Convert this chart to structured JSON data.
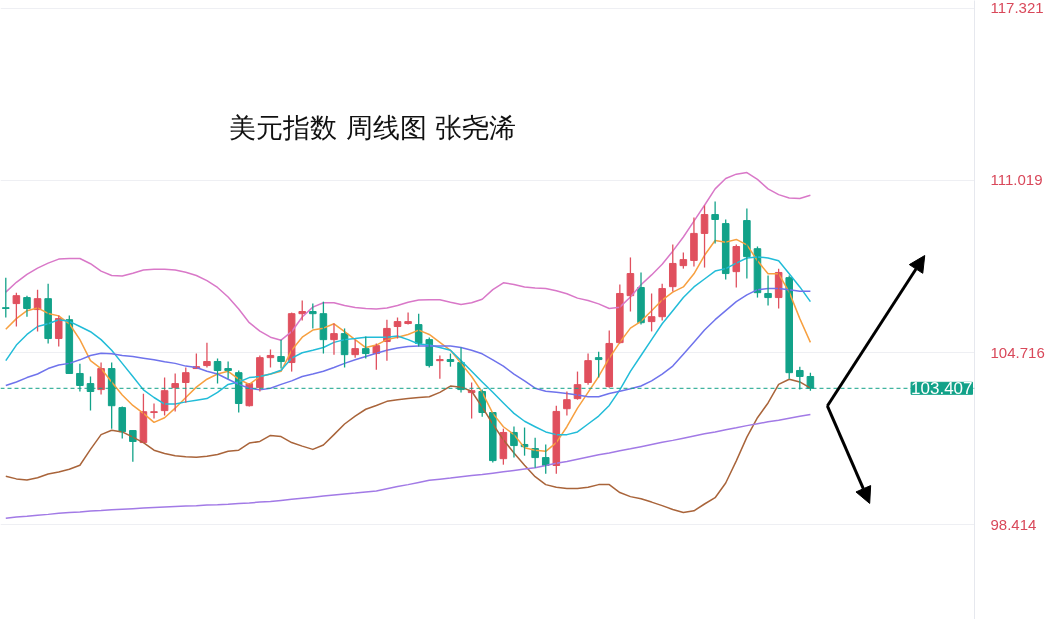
{
  "chart_data": {
    "type": "candlestick",
    "title": "美元指数 周线图 张尧浠",
    "categories": [
      null,
      null,
      null,
      null,
      null,
      null,
      null,
      null,
      null,
      null,
      null,
      null,
      null,
      null,
      null,
      null,
      null,
      null,
      null,
      null,
      null,
      null,
      null,
      null,
      null,
      null,
      null,
      null,
      null,
      null,
      null,
      null,
      null,
      null,
      null,
      null,
      null,
      null,
      null,
      null,
      null,
      null,
      null,
      null,
      null,
      null,
      null,
      null,
      null,
      null,
      null,
      null,
      null,
      null,
      null,
      null,
      null,
      null,
      null,
      null,
      null,
      null,
      null,
      null,
      null,
      null,
      null,
      null,
      null,
      null,
      null,
      null,
      null,
      null,
      null,
      null,
      null
    ],
    "ohlc": [
      [
        106.36,
        107.46,
        106.0,
        106.33
      ],
      [
        106.51,
        106.91,
        105.67,
        106.8
      ],
      [
        106.73,
        106.8,
        106.03,
        106.33
      ],
      [
        106.29,
        107.02,
        105.49,
        106.69
      ],
      [
        106.69,
        107.24,
        105.05,
        105.23
      ],
      [
        105.23,
        106.07,
        104.94,
        105.96
      ],
      [
        105.92,
        106.07,
        103.95,
        103.95
      ],
      [
        103.95,
        104.31,
        103.29,
        103.51
      ],
      [
        103.58,
        103.84,
        102.59,
        103.29
      ],
      [
        103.36,
        104.35,
        103.18,
        104.13
      ],
      [
        104.13,
        104.35,
        101.93,
        102.77
      ],
      [
        102.7,
        102.74,
        101.57,
        101.82
      ],
      [
        101.86,
        101.86,
        100.72,
        101.46
      ],
      [
        101.42,
        103.21,
        101.42,
        102.55
      ],
      [
        102.52,
        102.85,
        102.3,
        102.55
      ],
      [
        102.59,
        103.8,
        102.41,
        103.32
      ],
      [
        103.43,
        103.95,
        102.56,
        103.58
      ],
      [
        103.62,
        104.17,
        102.88,
        103.98
      ],
      [
        104.13,
        104.68,
        104.13,
        104.2
      ],
      [
        104.24,
        105.08,
        104.17,
        104.39
      ],
      [
        104.39,
        104.5,
        103.58,
        104.06
      ],
      [
        104.13,
        104.39,
        103.76,
        104.06
      ],
      [
        103.98,
        104.06,
        102.52,
        102.85
      ],
      [
        102.77,
        103.58,
        102.74,
        103.58
      ],
      [
        103.43,
        104.61,
        103.29,
        104.53
      ],
      [
        104.53,
        104.83,
        104.17,
        104.61
      ],
      [
        104.57,
        105.19,
        104.13,
        104.39
      ],
      [
        104.35,
        106.18,
        104.02,
        106.14
      ],
      [
        106.14,
        106.62,
        105.89,
        106.22
      ],
      [
        106.22,
        106.51,
        105.6,
        106.14
      ],
      [
        106.14,
        106.58,
        104.68,
        105.19
      ],
      [
        105.19,
        105.78,
        104.64,
        105.41
      ],
      [
        105.41,
        105.6,
        104.17,
        104.64
      ],
      [
        104.64,
        105.19,
        104.53,
        104.86
      ],
      [
        104.86,
        105.3,
        104.5,
        104.68
      ],
      [
        104.68,
        105.05,
        104.09,
        104.97
      ],
      [
        105.12,
        105.92,
        104.42,
        105.6
      ],
      [
        105.67,
        106.0,
        105.23,
        105.85
      ],
      [
        105.78,
        106.18,
        105.74,
        105.85
      ],
      [
        105.74,
        106.14,
        104.94,
        105.05
      ],
      [
        105.19,
        105.27,
        104.17,
        104.24
      ],
      [
        104.42,
        104.61,
        103.76,
        104.46
      ],
      [
        104.46,
        104.68,
        104.2,
        104.39
      ],
      [
        104.35,
        104.9,
        103.25,
        103.36
      ],
      [
        103.25,
        103.62,
        102.3,
        103.32
      ],
      [
        103.29,
        103.36,
        102.37,
        102.52
      ],
      [
        102.52,
        102.52,
        100.69,
        100.76
      ],
      [
        100.83,
        101.93,
        100.61,
        101.79
      ],
      [
        101.79,
        102.01,
        100.87,
        101.31
      ],
      [
        101.35,
        101.97,
        100.94,
        101.27
      ],
      [
        101.2,
        101.6,
        100.5,
        100.87
      ],
      [
        100.87,
        101.35,
        100.28,
        100.58
      ],
      [
        100.58,
        102.77,
        100.28,
        102.56
      ],
      [
        102.66,
        103.29,
        102.41,
        102.99
      ],
      [
        103.03,
        104.02,
        102.99,
        103.54
      ],
      [
        103.62,
        104.68,
        103.54,
        104.42
      ],
      [
        104.53,
        104.75,
        103.8,
        104.46
      ],
      [
        103.47,
        105.52,
        103.43,
        105.05
      ],
      [
        105.08,
        107.21,
        105.05,
        106.88
      ],
      [
        106.8,
        108.2,
        106.22,
        107.61
      ],
      [
        107.1,
        107.65,
        105.74,
        105.81
      ],
      [
        105.85,
        106.88,
        105.49,
        106.03
      ],
      [
        106.03,
        107.24,
        105.89,
        107.06
      ],
      [
        107.13,
        108.67,
        106.95,
        107.98
      ],
      [
        107.9,
        108.38,
        107.79,
        108.12
      ],
      [
        108.09,
        109.66,
        107.87,
        109.08
      ],
      [
        109.08,
        110.1,
        107.83,
        109.77
      ],
      [
        109.77,
        110.25,
        108.71,
        109.59
      ],
      [
        109.44,
        109.59,
        107.39,
        107.61
      ],
      [
        107.68,
        108.67,
        107.1,
        108.6
      ],
      [
        109.55,
        109.99,
        107.43,
        108.23
      ],
      [
        108.52,
        108.6,
        106.73,
        106.91
      ],
      [
        106.88,
        107.54,
        106.44,
        106.73
      ],
      [
        106.73,
        107.79,
        106.33,
        107.65
      ],
      [
        107.46,
        107.54,
        103.76,
        103.98
      ],
      [
        104.06,
        104.2,
        103.36,
        103.84
      ],
      [
        103.84,
        103.98,
        103.32,
        103.407
      ]
    ],
    "colors": [
      "#12a289",
      "#e0505e",
      "#12a289",
      "#e0505e",
      "#12a289",
      "#e0505e",
      "#12a289",
      "#12a289",
      "#12a289",
      "#e0505e",
      "#12a289",
      "#12a289",
      "#12a289",
      "#e0505e",
      "#e0505e",
      "#e0505e",
      "#e0505e",
      "#e0505e",
      "#e0505e",
      "#e0505e",
      "#12a289",
      "#12a289",
      "#12a289",
      "#e0505e",
      "#e0505e",
      "#e0505e",
      "#12a289",
      "#e0505e",
      "#e0505e",
      "#12a289",
      "#12a289",
      "#e0505e",
      "#12a289",
      "#e0505e",
      "#12a289",
      "#e0505e",
      "#e0505e",
      "#e0505e",
      "#e0505e",
      "#12a289",
      "#12a289",
      "#e0505e",
      "#12a289",
      "#12a289",
      "#e0505e",
      "#12a289",
      "#12a289",
      "#e0505e",
      "#12a289",
      "#12a289",
      "#12a289",
      "#12a289",
      "#e0505e",
      "#e0505e",
      "#e0505e",
      "#e0505e",
      "#12a289",
      "#e0505e",
      "#e0505e",
      "#e0505e",
      "#12a289",
      "#e0505e",
      "#e0505e",
      "#e0505e",
      "#e0505e",
      "#e0505e",
      "#e0505e",
      "#12a289",
      "#12a289",
      "#e0505e",
      "#12a289",
      "#12a289",
      "#12a289",
      "#e0505e",
      "#12a289",
      "#12a289",
      "#12a289"
    ],
    "series": [
      {
        "type": "line",
        "color": "#f7a040",
        "values": [
          105.57,
          105.96,
          106.25,
          106.35,
          106.15,
          106.06,
          105.77,
          105.19,
          104.42,
          104.13,
          103.64,
          103.16,
          102.78,
          102.49,
          102.16,
          102.33,
          102.68,
          103.07,
          103.45,
          103.74,
          103.93,
          104.03,
          103.74,
          103.55,
          103.84,
          103.93,
          104.03,
          104.8,
          105.28,
          105.54,
          105.61,
          105.77,
          105.48,
          105.19,
          104.9,
          104.99,
          105.19,
          105.28,
          105.38,
          105.54,
          105.38,
          105.09,
          104.8,
          104.32,
          103.84,
          103.26,
          102.49,
          102.0,
          101.71,
          101.23,
          101.14,
          101.1,
          101.42,
          102.0,
          102.68,
          103.26,
          103.84,
          104.51,
          105.09,
          105.61,
          105.86,
          106.25,
          106.64,
          106.93,
          107.12,
          107.6,
          108.28,
          108.82,
          108.76,
          108.86,
          108.66,
          108.08,
          107.6,
          107.6,
          106.93,
          105.96,
          105.09
        ]
      },
      {
        "type": "line",
        "color": "#22bcd8",
        "values": [
          104.42,
          104.99,
          105.38,
          105.67,
          105.77,
          105.92,
          105.86,
          105.67,
          105.48,
          105.19,
          104.8,
          104.32,
          103.84,
          103.35,
          103.07,
          102.83,
          102.83,
          102.91,
          102.97,
          103.03,
          103.26,
          103.55,
          103.64,
          103.8,
          103.84,
          103.93,
          104.07,
          104.51,
          104.71,
          104.8,
          104.9,
          105.09,
          105.19,
          105.23,
          105.28,
          105.28,
          105.28,
          105.32,
          105.19,
          105.03,
          104.99,
          104.9,
          104.8,
          104.42,
          104.03,
          103.64,
          103.26,
          102.87,
          102.49,
          102.2,
          102.0,
          101.81,
          101.71,
          101.71,
          101.81,
          102.1,
          102.39,
          102.78,
          103.35,
          104.03,
          104.61,
          105.19,
          105.77,
          106.25,
          106.73,
          107.12,
          107.41,
          107.7,
          107.79,
          107.99,
          108.18,
          108.22,
          108.18,
          108.08,
          107.6,
          107.12,
          106.58
        ]
      },
      {
        "type": "line",
        "color": "#6f73ec",
        "values": [
          103.51,
          103.64,
          103.8,
          103.93,
          104.13,
          104.26,
          104.32,
          104.45,
          104.61,
          104.69,
          104.67,
          104.61,
          104.57,
          104.51,
          104.45,
          104.38,
          104.32,
          104.22,
          104.17,
          104.03,
          103.93,
          103.74,
          103.55,
          103.41,
          103.35,
          103.41,
          103.55,
          103.68,
          103.84,
          103.93,
          104.03,
          104.17,
          104.32,
          104.45,
          104.57,
          104.69,
          104.8,
          104.88,
          104.94,
          104.96,
          104.96,
          104.96,
          104.96,
          104.9,
          104.8,
          104.67,
          104.45,
          104.22,
          103.93,
          103.68,
          103.41,
          103.3,
          103.26,
          103.22,
          103.16,
          103.1,
          103.1,
          103.22,
          103.3,
          103.39,
          103.49,
          103.68,
          103.93,
          104.22,
          104.65,
          105.09,
          105.54,
          105.92,
          106.25,
          106.58,
          106.83,
          107.02,
          107.06,
          107.06,
          107.02,
          106.96,
          106.96
        ]
      },
      {
        "type": "line",
        "color": "#d978c8",
        "values": [
          106.93,
          107.29,
          107.58,
          107.81,
          107.99,
          108.14,
          108.16,
          108.16,
          107.97,
          107.7,
          107.54,
          107.52,
          107.62,
          107.74,
          107.77,
          107.77,
          107.74,
          107.66,
          107.54,
          107.35,
          107.1,
          106.75,
          106.31,
          105.81,
          105.5,
          105.28,
          105.17,
          105.48,
          106.02,
          106.38,
          106.54,
          106.54,
          106.44,
          106.37,
          106.33,
          106.31,
          106.35,
          106.44,
          106.56,
          106.64,
          106.65,
          106.65,
          106.56,
          106.48,
          106.54,
          106.67,
          107.02,
          107.27,
          107.21,
          107.12,
          107.08,
          107.06,
          106.98,
          106.87,
          106.71,
          106.62,
          106.5,
          106.33,
          106.38,
          106.75,
          107.2,
          107.56,
          107.95,
          108.43,
          108.95,
          109.53,
          110.11,
          110.71,
          111.09,
          111.25,
          111.31,
          111.06,
          110.71,
          110.5,
          110.38,
          110.36,
          110.48
        ]
      },
      {
        "type": "line",
        "color": "#a9643a",
        "values": [
          100.19,
          100.09,
          100.05,
          100.13,
          100.27,
          100.34,
          100.44,
          100.59,
          101.17,
          101.71,
          101.87,
          101.81,
          101.62,
          101.42,
          101.14,
          101.02,
          100.94,
          100.9,
          100.88,
          100.92,
          100.98,
          101.1,
          101.14,
          101.4,
          101.46,
          101.68,
          101.64,
          101.42,
          101.29,
          101.17,
          101.33,
          101.71,
          102.1,
          102.39,
          102.64,
          102.78,
          102.93,
          102.99,
          103.03,
          103.07,
          103.1,
          103.26,
          103.49,
          103.45,
          103.3,
          102.72,
          102.1,
          101.52,
          101.04,
          100.59,
          100.17,
          99.88,
          99.78,
          99.74,
          99.74,
          99.78,
          99.88,
          99.88,
          99.59,
          99.44,
          99.36,
          99.24,
          99.11,
          98.97,
          98.86,
          98.92,
          99.17,
          99.4,
          99.94,
          100.75,
          101.62,
          102.33,
          102.87,
          103.55,
          103.74,
          103.64,
          103.41
        ]
      },
      {
        "type": "line",
        "color": "#a27ae6",
        "values": [
          98.65,
          98.69,
          98.72,
          98.76,
          98.79,
          98.83,
          98.86,
          98.88,
          98.91,
          98.93,
          98.96,
          98.98,
          99.0,
          99.02,
          99.04,
          99.06,
          99.08,
          99.1,
          99.11,
          99.13,
          99.14,
          99.16,
          99.19,
          99.21,
          99.24,
          99.26,
          99.3,
          99.34,
          99.38,
          99.42,
          99.46,
          99.5,
          99.54,
          99.57,
          99.61,
          99.65,
          99.73,
          99.81,
          99.88,
          99.96,
          100.04,
          100.08,
          100.12,
          100.17,
          100.21,
          100.25,
          100.3,
          100.35,
          100.4,
          100.45,
          100.5,
          100.58,
          100.66,
          100.73,
          100.81,
          100.89,
          100.97,
          101.04,
          101.12,
          101.19,
          101.27,
          101.35,
          101.43,
          101.5,
          101.58,
          101.66,
          101.74,
          101.81,
          101.89,
          101.96,
          102.04,
          102.11,
          102.18,
          102.24,
          102.31,
          102.38,
          102.45
        ]
      }
    ],
    "ylim": [
      94.94,
      117.61
    ],
    "yticks": [
      98.414,
      104.716,
      111.019,
      117.321
    ],
    "ref_lines": [
      {
        "axis": "y",
        "value": 103.407,
        "label": "103.407",
        "color": "#12a289",
        "line_style": "dashed"
      }
    ],
    "grid": "y",
    "tick_labels": "y"
  }
}
